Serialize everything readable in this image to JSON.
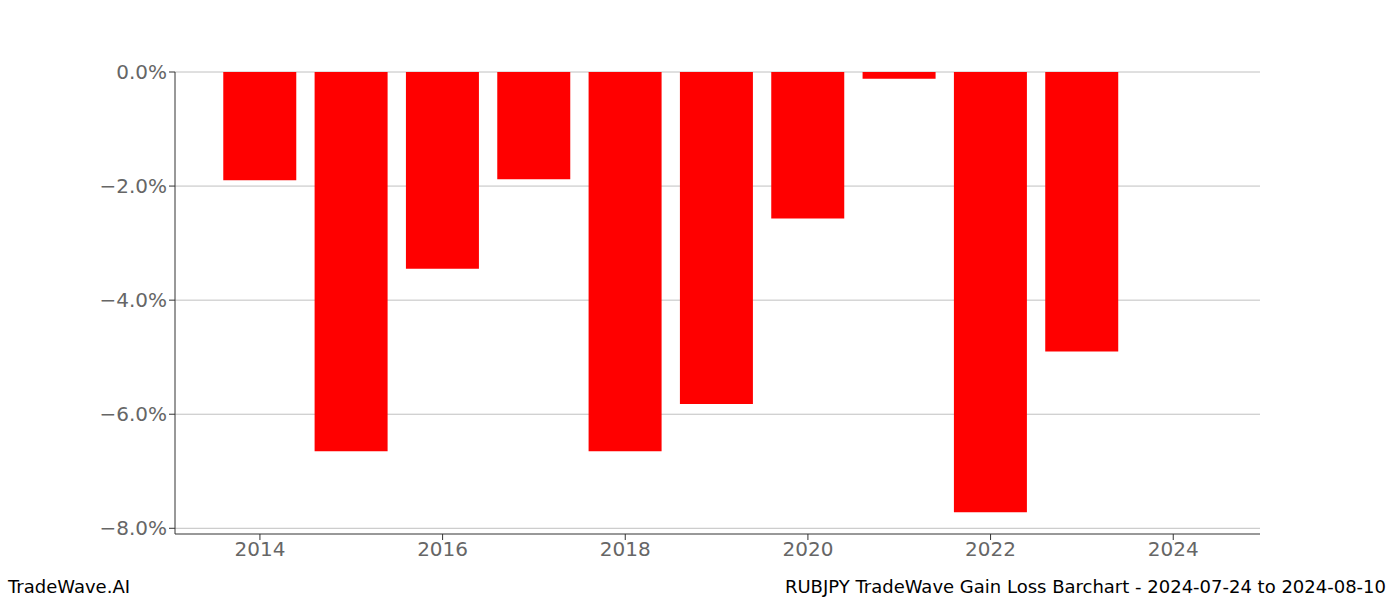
{
  "chart_data": {
    "type": "bar",
    "title": "RUBJPY TradeWave Gain Loss Barchart - 2024-07-24 to 2024-08-10",
    "annotations": [
      "TradeWave.AI"
    ],
    "x": [
      2014,
      2015,
      2016,
      2017,
      2018,
      2019,
      2020,
      2021,
      2022,
      2023
    ],
    "values": [
      -1.9,
      -6.65,
      -3.45,
      -1.88,
      -6.65,
      -5.82,
      -2.57,
      -0.12,
      -7.72,
      -4.9
    ],
    "color": "#ff0000",
    "xlim": [
      2013.07,
      2024.95
    ],
    "xticks": [
      2014,
      2016,
      2018,
      2020,
      2022,
      2024
    ],
    "ylim": [
      -8.1,
      0
    ],
    "yticks": [
      {
        "value": -8,
        "label": "−8.0%"
      },
      {
        "value": -6,
        "label": "−6.0%"
      },
      {
        "value": -4,
        "label": "−4.0%"
      },
      {
        "value": -2,
        "label": "−2.0%"
      },
      {
        "value": 0,
        "label": "0.0%"
      }
    ],
    "grid": true
  }
}
